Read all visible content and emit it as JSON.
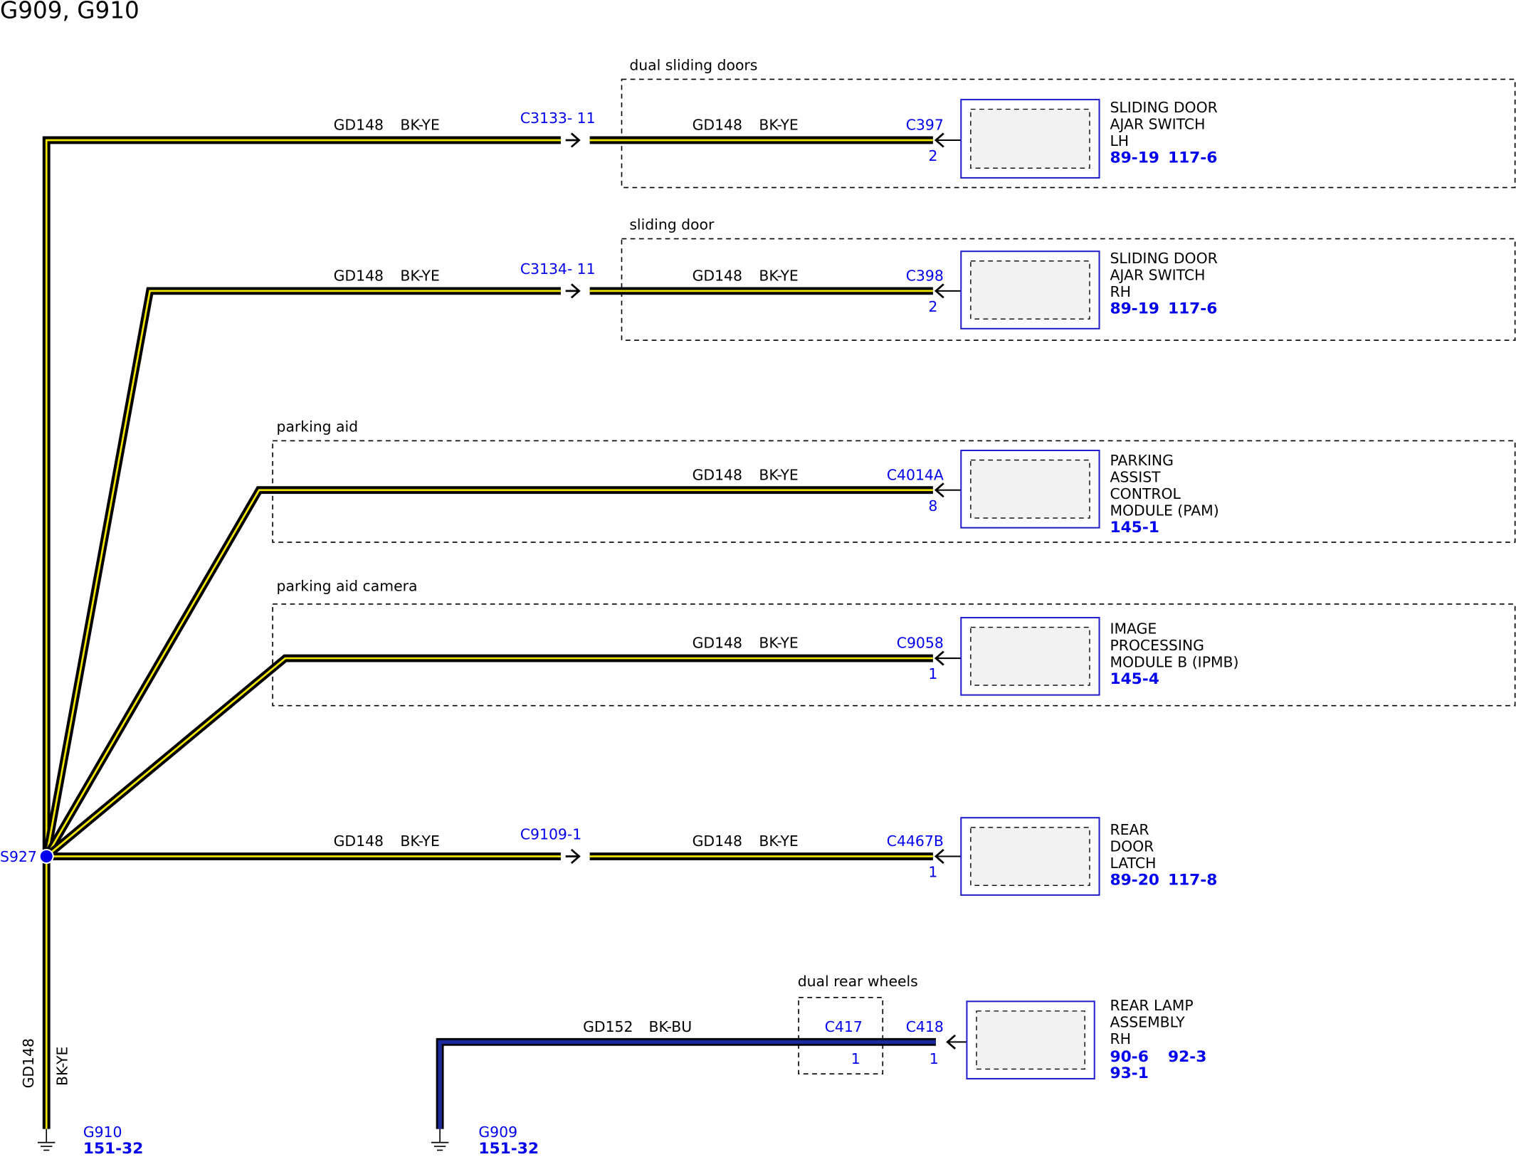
{
  "title": "G909, G910",
  "splice": "S927",
  "rows": [
    {
      "option": "dual sliding doors",
      "wires": [
        {
          "circuit": "GD148",
          "color": "BK-YE"
        },
        {
          "circuit": "GD148",
          "color": "BK-YE"
        }
      ],
      "inline": "C3133- 11",
      "connector": "C397",
      "pin": "2",
      "component": [
        "SLIDING DOOR",
        "AJAR SWITCH",
        "LH"
      ],
      "refs": [
        "89-19",
        "117-6"
      ]
    },
    {
      "option": "sliding door",
      "wires": [
        {
          "circuit": "GD148",
          "color": "BK-YE"
        },
        {
          "circuit": "GD148",
          "color": "BK-YE"
        }
      ],
      "inline": "C3134- 11",
      "connector": "C398",
      "pin": "2",
      "component": [
        "SLIDING DOOR",
        "AJAR SWITCH",
        "RH"
      ],
      "refs": [
        "89-19",
        "117-6"
      ]
    },
    {
      "option": "parking aid",
      "wires": [
        {
          "circuit": "GD148",
          "color": "BK-YE"
        }
      ],
      "connector": "C4014A",
      "pin": "8",
      "component": [
        "PARKING",
        "ASSIST",
        "CONTROL",
        "MODULE (PAM)"
      ],
      "refs": [
        "145-1"
      ]
    },
    {
      "option": "parking aid camera",
      "wires": [
        {
          "circuit": "GD148",
          "color": "BK-YE"
        }
      ],
      "connector": "C9058",
      "pin": "1",
      "component": [
        "IMAGE",
        "PROCESSING",
        "MODULE B (IPMB)"
      ],
      "refs": [
        "145-4"
      ]
    },
    {
      "wires": [
        {
          "circuit": "GD148",
          "color": "BK-YE"
        },
        {
          "circuit": "GD148",
          "color": "BK-YE"
        }
      ],
      "inline": "C9109-1",
      "connector": "C4467B",
      "pin": "1",
      "component": [
        "REAR",
        "DOOR",
        "LATCH"
      ],
      "refs": [
        "89-20",
        "117-8"
      ]
    }
  ],
  "ground_g910": {
    "circuit": "GD148",
    "color": "BK-YE",
    "name": "G910",
    "ref": "151-32"
  },
  "rear_lamp": {
    "option": "dual rear wheels",
    "circuit": "GD152",
    "color": "BK-BU",
    "inline": "C417",
    "inline_pin": "1",
    "connector": "C418",
    "pin": "1",
    "component": [
      "REAR LAMP",
      "ASSEMBLY",
      "RH"
    ],
    "refs": [
      "90-6",
      "92-3",
      "93-1"
    ],
    "ground": "G909",
    "ground_ref": "151-32"
  }
}
